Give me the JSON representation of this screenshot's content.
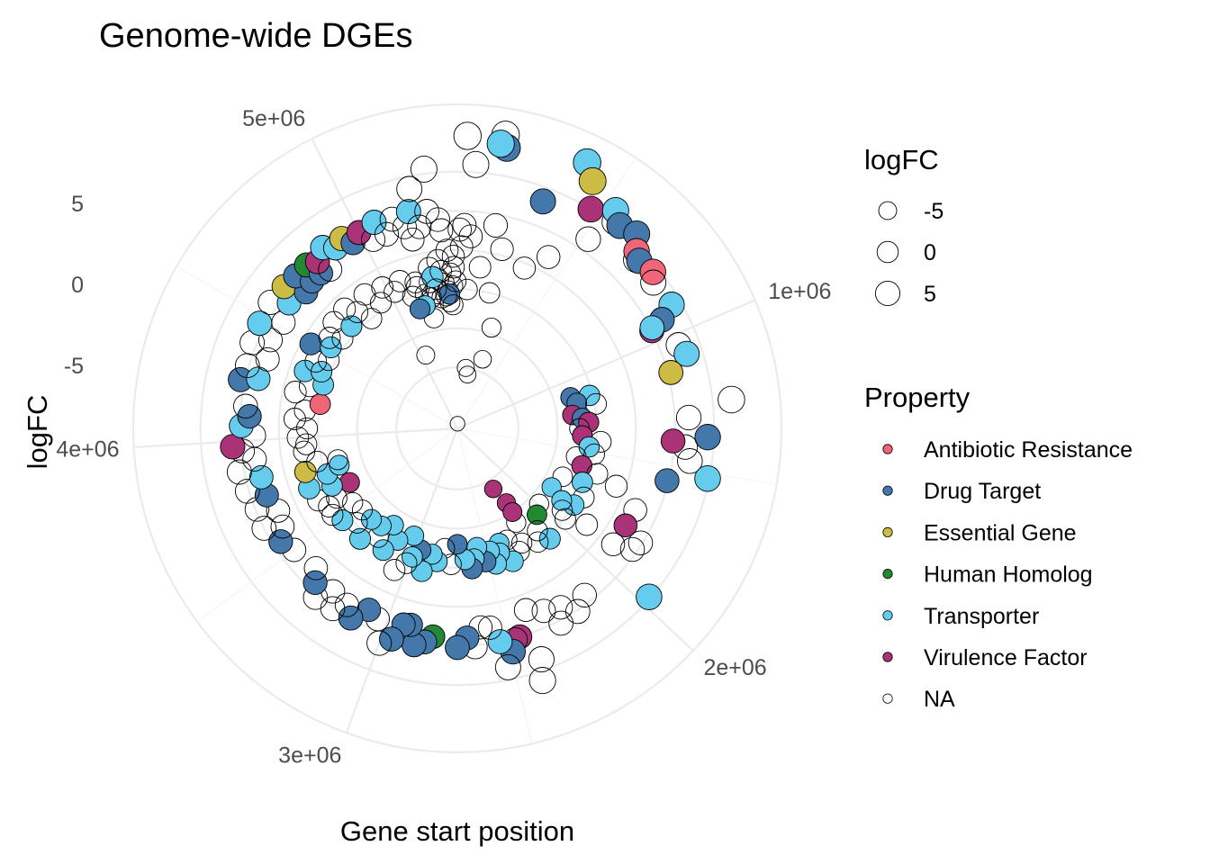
{
  "chart_data": {
    "type": "scatter",
    "coord": "polar",
    "title": "Genome-wide DGEs",
    "xlabel": "Gene start position",
    "ylabel": "logFC",
    "x_ticks": [
      {
        "value": 1000000,
        "label": "1e+06"
      },
      {
        "value": 2000000,
        "label": "2e+06"
      },
      {
        "value": 3000000,
        "label": "3e+06"
      },
      {
        "value": 4000000,
        "label": "4e+06"
      },
      {
        "value": 5000000,
        "label": "5e+06"
      }
    ],
    "x_range": [
      0,
      5400000
    ],
    "y_ticks": [
      {
        "value": -5,
        "label": "-5"
      },
      {
        "value": 0,
        "label": "0"
      },
      {
        "value": 5,
        "label": "5"
      }
    ],
    "y_range": [
      -11.4,
      9.3
    ],
    "grid": true,
    "size_legend": {
      "title": "logFC",
      "entries": [
        {
          "value": -5,
          "label": "-5"
        },
        {
          "value": 0,
          "label": "0"
        },
        {
          "value": 5,
          "label": "5"
        }
      ]
    },
    "color_legend": {
      "title": "Property",
      "entries": [
        {
          "key": "AR",
          "label": "Antibiotic Resistance",
          "color": "#EE6677"
        },
        {
          "key": "DT",
          "label": "Drug Target",
          "color": "#4477AA"
        },
        {
          "key": "EG",
          "label": "Essential Gene",
          "color": "#CCBB44"
        },
        {
          "key": "HH",
          "label": "Human Homolog",
          "color": "#228833"
        },
        {
          "key": "TR",
          "label": "Transporter",
          "color": "#66CCEE"
        },
        {
          "key": "VF",
          "label": "Virulence Factor",
          "color": "#AA3377"
        },
        {
          "key": "NA",
          "label": "NA",
          "color": "#FFFFFF"
        }
      ]
    },
    "legend_position": "right",
    "points": [
      [
        40000,
        -11.1,
        "NA"
      ],
      [
        120000,
        -7.5,
        "NA"
      ],
      [
        160000,
        -7.9,
        "NA"
      ],
      [
        300000,
        -6.7,
        "NA"
      ],
      [
        200000,
        -2.5,
        "NA"
      ],
      [
        60000,
        -2.5,
        "NA"
      ],
      [
        120000,
        -1.0,
        "NA"
      ],
      [
        280000,
        -4.6,
        "NA"
      ],
      [
        20000,
        0.2,
        "NA"
      ],
      [
        10000,
        1.3,
        "NA"
      ],
      [
        30000,
        1.6,
        "NA"
      ],
      [
        60000,
        0.9,
        "NA"
      ],
      [
        160000,
        1.8,
        "NA"
      ],
      [
        210000,
        0.4,
        "NA"
      ],
      [
        340000,
        -0.3,
        "NA"
      ],
      [
        420000,
        1.0,
        "NA"
      ],
      [
        700000,
        4.3,
        "NA"
      ],
      [
        520000,
        3.3,
        "NA"
      ],
      [
        560000,
        5.2,
        "NA"
      ],
      [
        60000,
        5.5,
        "NA"
      ],
      [
        30000,
        7.3,
        "NA"
      ],
      [
        140000,
        7.6,
        "NA"
      ],
      [
        150000,
        6.8,
        "DT"
      ],
      [
        130000,
        7.0,
        "TR"
      ],
      [
        310000,
        4.1,
        "DT"
      ],
      [
        390000,
        7.5,
        "TR"
      ],
      [
        430000,
        6.6,
        "EG"
      ],
      [
        470000,
        5.0,
        "VF"
      ],
      [
        540000,
        5.8,
        "TR"
      ],
      [
        580000,
        5.2,
        "DT"
      ],
      [
        640000,
        5.5,
        "DT"
      ],
      [
        680000,
        4.7,
        "AR"
      ],
      [
        710000,
        4.4,
        "DT"
      ],
      [
        770000,
        4.6,
        "AR"
      ],
      [
        800000,
        4.2,
        "NA"
      ],
      [
        900000,
        4.4,
        "TR"
      ],
      [
        930000,
        3.4,
        "DT"
      ],
      [
        950000,
        2.5,
        "VF"
      ],
      [
        940000,
        2.6,
        "TR"
      ],
      [
        1040000,
        3.7,
        "NA"
      ],
      [
        1080000,
        4.0,
        "TR"
      ],
      [
        1130000,
        2.7,
        "EG"
      ],
      [
        1260000,
        6.2,
        "NA"
      ],
      [
        1380000,
        4.6,
        "DT"
      ],
      [
        1310000,
        3.4,
        "NA"
      ],
      [
        1420000,
        3.2,
        "NA"
      ],
      [
        1470000,
        3.6,
        "NA"
      ],
      [
        1520000,
        4.9,
        "TR"
      ],
      [
        1400000,
        2.4,
        "VF"
      ],
      [
        1560000,
        2.4,
        "DT"
      ],
      [
        1120000,
        -3.9,
        "DT"
      ],
      [
        1140000,
        -2.7,
        "TR"
      ],
      [
        1170000,
        -3.6,
        "DT"
      ],
      [
        1200000,
        -2.4,
        "NA"
      ],
      [
        1250000,
        -4.0,
        "VF"
      ],
      [
        1280000,
        -3.4,
        "DT"
      ],
      [
        1310000,
        -3.0,
        "VF"
      ],
      [
        1350000,
        -3.6,
        "NA"
      ],
      [
        1400000,
        -3.4,
        "VF"
      ],
      [
        1430000,
        -2.2,
        "NA"
      ],
      [
        1470000,
        -2.9,
        "TR"
      ],
      [
        1510000,
        -2.5,
        "NA"
      ],
      [
        1550000,
        -3.6,
        "NA"
      ],
      [
        1600000,
        -3.1,
        "VF"
      ],
      [
        1620000,
        -2.0,
        "NA"
      ],
      [
        1650000,
        -0.6,
        "NA"
      ],
      [
        1700000,
        -2.7,
        "TR"
      ],
      [
        1720000,
        -4.0,
        "NA"
      ],
      [
        1780000,
        -2.2,
        "NA"
      ],
      [
        1830000,
        -4.3,
        "TR"
      ],
      [
        1850000,
        -2.5,
        "TR"
      ],
      [
        1870000,
        -3.3,
        "TR"
      ],
      [
        1920000,
        -2.9,
        "NA"
      ],
      [
        1950000,
        -2.4,
        "NA"
      ],
      [
        1990000,
        -4.3,
        "NA"
      ],
      [
        1900000,
        -1.1,
        "NA"
      ],
      [
        1720000,
        1.1,
        "NA"
      ],
      [
        1800000,
        1.0,
        "VF"
      ],
      [
        1830000,
        2.4,
        "NA"
      ],
      [
        1870000,
        2.2,
        "NA"
      ],
      [
        1900000,
        1.0,
        "NA"
      ],
      [
        1970000,
        4.9,
        "TR"
      ],
      [
        2060000,
        -3.9,
        "HH"
      ],
      [
        2100000,
        -2.2,
        "TR"
      ],
      [
        2130000,
        -3.1,
        "NA"
      ],
      [
        2170000,
        -2.5,
        "NA"
      ],
      [
        2220000,
        -4.3,
        "NA"
      ],
      [
        2260000,
        -3.0,
        "NA"
      ],
      [
        2300000,
        -2.6,
        "NA"
      ],
      [
        2340000,
        -3.6,
        "NA"
      ],
      [
        2360000,
        -2.2,
        "TR"
      ],
      [
        2140000,
        2.0,
        "NA"
      ],
      [
        2200000,
        2.6,
        "NA"
      ],
      [
        2250000,
        1.8,
        "NA"
      ],
      [
        2280000,
        2.7,
        "NA"
      ],
      [
        2320000,
        1.5,
        "NA"
      ],
      [
        2390000,
        1.0,
        "NA"
      ],
      [
        2450000,
        2.5,
        "VF"
      ],
      [
        2200000,
        -5.7,
        "VF"
      ],
      [
        2200000,
        -5.0,
        "VF"
      ],
      [
        2240000,
        -6.9,
        "VF"
      ],
      [
        2400000,
        -3.6,
        "TR"
      ],
      [
        2420000,
        -3.0,
        "TR"
      ],
      [
        2460000,
        -2.4,
        "TR"
      ],
      [
        2480000,
        -3.3,
        "TR"
      ],
      [
        2520000,
        -2.7,
        "DT"
      ],
      [
        2560000,
        -3.7,
        "TR"
      ],
      [
        2590000,
        -3.0,
        "TR"
      ],
      [
        2610000,
        -2.4,
        "DT"
      ],
      [
        2650000,
        -3.0,
        "TR"
      ],
      [
        2700000,
        -4.0,
        "DT"
      ],
      [
        2740000,
        -2.7,
        "NA"
      ],
      [
        2790000,
        -3.7,
        "NA"
      ],
      [
        2470000,
        2.6,
        "NA"
      ],
      [
        2490000,
        3.3,
        "DT"
      ],
      [
        2530000,
        2.5,
        "TR"
      ],
      [
        2560000,
        1.5,
        "NA"
      ],
      [
        2600000,
        1.4,
        "NA"
      ],
      [
        2630000,
        2.6,
        "NA"
      ],
      [
        2660000,
        2.0,
        "DT"
      ],
      [
        2700000,
        2.6,
        "DT"
      ],
      [
        2400000,
        4.3,
        "NA"
      ],
      [
        2420000,
        5.6,
        "NA"
      ],
      [
        2520000,
        4.2,
        "NA"
      ],
      [
        2830000,
        -2.8,
        "TR"
      ],
      [
        2870000,
        -3.2,
        "TR"
      ],
      [
        2910000,
        -2.0,
        "TR"
      ],
      [
        2950000,
        -3.3,
        "DT"
      ],
      [
        2990000,
        -2.7,
        "TR"
      ],
      [
        3010000,
        -2.2,
        "NA"
      ],
      [
        3030000,
        -4.0,
        "TR"
      ],
      [
        2800000,
        2.0,
        "HH"
      ],
      [
        2830000,
        2.4,
        "DT"
      ],
      [
        2870000,
        2.7,
        "DT"
      ],
      [
        2900000,
        1.5,
        "DT"
      ],
      [
        2930000,
        1.6,
        "DT"
      ],
      [
        2960000,
        2.7,
        "DT"
      ],
      [
        3000000,
        3.2,
        "NA"
      ],
      [
        3040000,
        1.8,
        "NA"
      ],
      [
        3090000,
        1.5,
        "DT"
      ],
      [
        3140000,
        2.5,
        "DT"
      ],
      [
        3180000,
        1.9,
        "NA"
      ],
      [
        3220000,
        2.6,
        "NA"
      ],
      [
        3260000,
        1.7,
        "NA"
      ],
      [
        3300000,
        2.7,
        "NA"
      ],
      [
        3340000,
        2.0,
        "DT"
      ],
      [
        3380000,
        1.3,
        "NA"
      ],
      [
        3060000,
        -1.5,
        "NA"
      ],
      [
        3120000,
        -3.3,
        "TR"
      ],
      [
        3170000,
        -2.3,
        "TR"
      ],
      [
        3200000,
        -4.0,
        "TR"
      ],
      [
        3240000,
        -2.8,
        "NA"
      ],
      [
        3270000,
        -3.5,
        "TR"
      ],
      [
        3320000,
        -2.0,
        "TR"
      ],
      [
        3350000,
        -3.4,
        "TR"
      ],
      [
        3400000,
        -2.6,
        "NA"
      ],
      [
        3440000,
        -3.4,
        "NA"
      ],
      [
        3470000,
        -2.0,
        "TR"
      ],
      [
        3520000,
        -3.2,
        "NA"
      ],
      [
        3530000,
        -1.7,
        "NA"
      ],
      [
        3580000,
        -1.8,
        "NA"
      ],
      [
        3600000,
        -2.5,
        "NA"
      ],
      [
        3640000,
        -1.4,
        "NA"
      ],
      [
        3650000,
        -3.7,
        "VF"
      ],
      [
        3680000,
        -2.6,
        "TR"
      ],
      [
        3720000,
        -1.2,
        "TR"
      ],
      [
        3760000,
        -2.6,
        "TR"
      ],
      [
        3790000,
        -3.5,
        "TR"
      ],
      [
        3810000,
        -1.3,
        "EG"
      ],
      [
        3850000,
        -2.2,
        "NA"
      ],
      [
        3830000,
        -3.5,
        "NA"
      ],
      [
        3500000,
        1.6,
        "NA"
      ],
      [
        3560000,
        2.0,
        "DT"
      ],
      [
        3610000,
        1.4,
        "NA"
      ],
      [
        3640000,
        2.5,
        "NA"
      ],
      [
        3680000,
        1.2,
        "NA"
      ],
      [
        3720000,
        2.4,
        "NA"
      ],
      [
        3760000,
        1.5,
        "DT"
      ],
      [
        3800000,
        2.6,
        "NA"
      ],
      [
        3840000,
        1.5,
        "TR"
      ],
      [
        3880000,
        2.8,
        "NA"
      ],
      [
        3920000,
        1.7,
        "NA"
      ],
      [
        3960000,
        2.4,
        "NA"
      ],
      [
        3980000,
        3.0,
        "VF"
      ],
      [
        4020000,
        1.6,
        "NA"
      ],
      [
        4060000,
        2.4,
        "TR"
      ],
      [
        4100000,
        1.9,
        "DT"
      ],
      [
        4140000,
        2.2,
        "NA"
      ],
      [
        3920000,
        -1.5,
        "NA"
      ],
      [
        3960000,
        -1.7,
        "NA"
      ],
      [
        4000000,
        -1.2,
        "NA"
      ],
      [
        4050000,
        -1.8,
        "NA"
      ],
      [
        4100000,
        -1.0,
        "NA"
      ],
      [
        4150000,
        -1.6,
        "NA"
      ],
      [
        4200000,
        -2.5,
        "AR"
      ],
      [
        4240000,
        -0.8,
        "NA"
      ],
      [
        4290000,
        -1.6,
        "NA"
      ],
      [
        4320000,
        -2.4,
        "TR"
      ],
      [
        4360000,
        -1.0,
        "TR"
      ],
      [
        4390000,
        -2.0,
        "TR"
      ],
      [
        4430000,
        -1.4,
        "NA"
      ],
      [
        4470000,
        -2.1,
        "NA"
      ],
      [
        4500000,
        -0.6,
        "DT"
      ],
      [
        4540000,
        -1.8,
        "TR"
      ],
      [
        4580000,
        -1.4,
        "NA"
      ],
      [
        4240000,
        2.8,
        "DT"
      ],
      [
        4260000,
        1.7,
        "TR"
      ],
      [
        4300000,
        2.6,
        "NA"
      ],
      [
        4350000,
        1.5,
        "NA"
      ],
      [
        4390000,
        2.8,
        "NA"
      ],
      [
        4430000,
        1.8,
        "NA"
      ],
      [
        4470000,
        2.9,
        "TR"
      ],
      [
        4520000,
        1.6,
        "NA"
      ],
      [
        4560000,
        3.0,
        "NA"
      ],
      [
        4600000,
        2.0,
        "TR"
      ],
      [
        4640000,
        2.9,
        "EG"
      ],
      [
        4680000,
        1.6,
        "DT"
      ],
      [
        4700000,
        2.8,
        "DT"
      ],
      [
        4730000,
        1.8,
        "DT"
      ],
      [
        4760000,
        2.8,
        "HH"
      ],
      [
        4780000,
        1.8,
        "DT"
      ],
      [
        4800000,
        2.5,
        "VF"
      ],
      [
        4820000,
        1.6,
        "NA"
      ],
      [
        4850000,
        3.0,
        "TR"
      ],
      [
        4890000,
        2.5,
        "TR"
      ],
      [
        4930000,
        2.8,
        "EG"
      ],
      [
        4960000,
        2.2,
        "DT"
      ],
      [
        5000000,
        2.6,
        "VF"
      ],
      [
        5040000,
        1.8,
        "NA"
      ],
      [
        5070000,
        2.8,
        "TR"
      ],
      [
        5100000,
        1.8,
        "NA"
      ],
      [
        5140000,
        2.6,
        "NA"
      ],
      [
        5180000,
        1.9,
        "NA"
      ],
      [
        5210000,
        2.8,
        "TR"
      ],
      [
        5240000,
        1.7,
        "NA"
      ],
      [
        5280000,
        2.6,
        "NA"
      ],
      [
        5320000,
        2.0,
        "NA"
      ],
      [
        4620000,
        -2.1,
        "NA"
      ],
      [
        4660000,
        -1.0,
        "NA"
      ],
      [
        4710000,
        -2.0,
        "TR"
      ],
      [
        4750000,
        -0.9,
        "NA"
      ],
      [
        4790000,
        -1.6,
        "NA"
      ],
      [
        4830000,
        -2.5,
        "NA"
      ],
      [
        4880000,
        -1.0,
        "NA"
      ],
      [
        4930000,
        -2.0,
        "NA"
      ],
      [
        4980000,
        -1.2,
        "NA"
      ],
      [
        5030000,
        -1.8,
        "NA"
      ],
      [
        5080000,
        -1.3,
        "NA"
      ],
      [
        5120000,
        -2.5,
        "NA"
      ],
      [
        5160000,
        -1.7,
        "NA"
      ],
      [
        5200000,
        -2.6,
        "NA"
      ],
      [
        5240000,
        -1.9,
        "NA"
      ],
      [
        5280000,
        -2.7,
        "NA"
      ],
      [
        5320000,
        -2.1,
        "NA"
      ],
      [
        5360000,
        -1.5,
        "NA"
      ],
      [
        5300000,
        -3.0,
        "NA"
      ],
      [
        5340000,
        -2.6,
        "NA"
      ],
      [
        5370000,
        -2.3,
        "NA"
      ],
      [
        5290000,
        -1.8,
        "NA"
      ],
      [
        5350000,
        -3.3,
        "NA"
      ],
      [
        5220000,
        -4.2,
        "NA"
      ],
      [
        5200000,
        1.0,
        "NA"
      ],
      [
        5230000,
        4.2,
        "NA"
      ],
      [
        5290000,
        5.3,
        "NA"
      ],
      [
        5330000,
        1.3,
        "NA"
      ],
      [
        5250000,
        -1.0,
        "NA"
      ],
      [
        5300000,
        -0.6,
        "NA"
      ],
      [
        5350000,
        0.0,
        "NA"
      ],
      [
        5380000,
        -0.4,
        "NA"
      ],
      [
        5260000,
        -1.6,
        "TR"
      ],
      [
        5350000,
        -2.8,
        "DT"
      ],
      [
        5330000,
        -2.9,
        "NA"
      ],
      [
        5390000,
        -2.0,
        "NA"
      ],
      [
        5310000,
        -1.3,
        "NA"
      ],
      [
        5270000,
        -2.4,
        "NA"
      ],
      [
        5230000,
        -2.9,
        "NA"
      ],
      [
        5180000,
        -3.3,
        "TR"
      ],
      [
        5140000,
        -3.4,
        "DT"
      ],
      [
        5160000,
        -2.0,
        "NA"
      ],
      [
        5370000,
        -3.5,
        "NA"
      ],
      [
        5380000,
        -1.1,
        "NA"
      ],
      [
        5050000,
        -6.3,
        "NA"
      ]
    ]
  }
}
